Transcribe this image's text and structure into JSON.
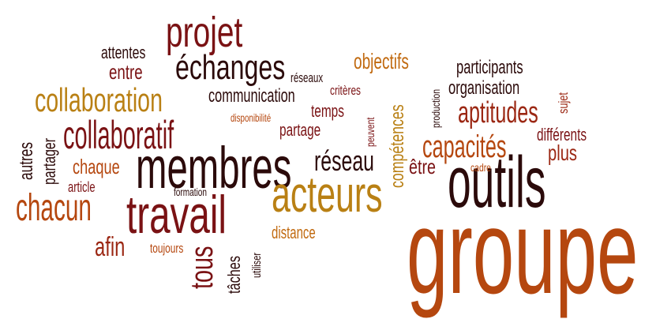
{
  "palette": {
    "dark": "#2b0a0a",
    "wine": "#7a1214",
    "red": "#9b2713",
    "rust": "#b5470f",
    "orange": "#c16a10",
    "gold": "#b98014"
  },
  "words": [
    {
      "text": "groupe",
      "color": "rust"
    },
    {
      "text": "outils",
      "color": "dark"
    },
    {
      "text": "membres",
      "color": "dark"
    },
    {
      "text": "travail",
      "color": "wine"
    },
    {
      "text": "acteurs",
      "color": "gold"
    },
    {
      "text": "collaboratif",
      "color": "wine"
    },
    {
      "text": "collaboration",
      "color": "gold"
    },
    {
      "text": "projet",
      "color": "wine"
    },
    {
      "text": "échanges",
      "color": "dark"
    },
    {
      "text": "chacun",
      "color": "rust"
    },
    {
      "text": "capacités",
      "color": "rust"
    },
    {
      "text": "aptitudes",
      "color": "red"
    },
    {
      "text": "réseau",
      "color": "dark"
    },
    {
      "text": "compétences",
      "color": "gold"
    },
    {
      "text": "objectifs",
      "color": "orange"
    },
    {
      "text": "participants",
      "color": "dark"
    },
    {
      "text": "organisation",
      "color": "dark"
    },
    {
      "text": "communication",
      "color": "dark"
    },
    {
      "text": "entre",
      "color": "wine"
    },
    {
      "text": "attentes",
      "color": "dark"
    },
    {
      "text": "réseaux",
      "color": "dark"
    },
    {
      "text": "critères",
      "color": "wine"
    },
    {
      "text": "temps",
      "color": "wine"
    },
    {
      "text": "partage",
      "color": "wine"
    },
    {
      "text": "disponibilité",
      "color": "rust"
    },
    {
      "text": "peuvent",
      "color": "wine"
    },
    {
      "text": "production",
      "color": "dark"
    },
    {
      "text": "sujet",
      "color": "red"
    },
    {
      "text": "différents",
      "color": "wine"
    },
    {
      "text": "plus",
      "color": "red"
    },
    {
      "text": "cadre",
      "color": "rust"
    },
    {
      "text": "être",
      "color": "wine"
    },
    {
      "text": "autres",
      "color": "dark"
    },
    {
      "text": "partager",
      "color": "dark"
    },
    {
      "text": "chaque",
      "color": "rust"
    },
    {
      "text": "article",
      "color": "wine"
    },
    {
      "text": "formation",
      "color": "dark"
    },
    {
      "text": "distance",
      "color": "orange"
    },
    {
      "text": "afin",
      "color": "red"
    },
    {
      "text": "toujours",
      "color": "rust"
    },
    {
      "text": "tous",
      "color": "wine"
    },
    {
      "text": "tâches",
      "color": "dark"
    },
    {
      "text": "utiliser",
      "color": "dark"
    }
  ]
}
